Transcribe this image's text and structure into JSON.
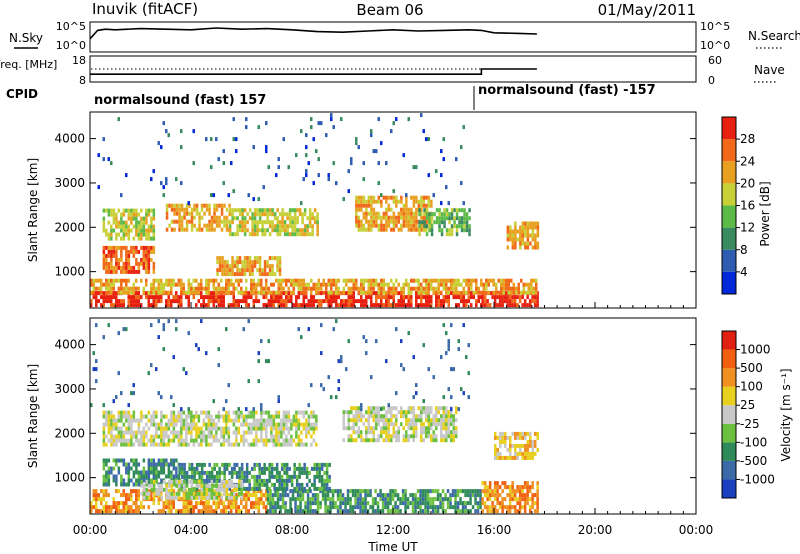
{
  "header": {
    "station": "Inuvik (fitACF)",
    "beam": "Beam 06",
    "date": "01/May/2011"
  },
  "chart_data": [
    {
      "type": "line",
      "panel": "noise",
      "left_label": "N.Sky",
      "right_label": "N.Search",
      "left_ticks": [
        "10^5",
        "10^0"
      ],
      "right_ticks": [
        "10^5",
        "10^0"
      ],
      "x": [
        0,
        0.3,
        0.6,
        1,
        2,
        3,
        4,
        5,
        6,
        7,
        8,
        9,
        10,
        11,
        12,
        13,
        14,
        15,
        15.5,
        16,
        17,
        17.7
      ],
      "series": [
        {
          "values": [
            2.2,
            3.6,
            3.8,
            3.7,
            3.9,
            3.8,
            3.7,
            4.0,
            3.8,
            3.9,
            3.7,
            3.4,
            3.3,
            3.5,
            3.7,
            3.5,
            3.6,
            3.7,
            3.6,
            3.2,
            3.1,
            3.0
          ]
        }
      ]
    },
    {
      "type": "line",
      "panel": "frequency",
      "left_label": "Freq. [MHz]",
      "right_label": "Nave",
      "left_ticks": [
        "18",
        "8"
      ],
      "right_ticks": [
        "60",
        "0"
      ],
      "x": [
        0,
        15.5,
        15.5,
        17.7
      ],
      "series": [
        {
          "values": [
            11,
            11,
            13,
            13
          ]
        }
      ]
    },
    {
      "type": "table",
      "panel": "cpid",
      "label": "CPID",
      "segments": [
        {
          "text": "normalsound (fast) 157",
          "start": 0,
          "end": 15.5
        },
        {
          "text": "normalsound (fast) -157",
          "start": 15.5,
          "end": 24
        }
      ]
    },
    {
      "type": "heatmap",
      "panel": "power",
      "ylabel": "Slant Range [km]",
      "yticks": [
        "1000",
        "2000",
        "3000",
        "4000"
      ],
      "ylim": [
        180,
        4600
      ],
      "xlim": [
        0,
        24
      ],
      "colorbar_label": "Power [dB]",
      "colorbar_ticks": [
        "4",
        "8",
        "12",
        "16",
        "20",
        "24",
        "28"
      ],
      "colorbar_colors": [
        "#0028d8",
        "#2e5cb0",
        "#3a8a60",
        "#5cbb48",
        "#c8d038",
        "#e8a020",
        "#f06818",
        "#e82010"
      ],
      "data_end_hour": 17.7,
      "bands": [
        {
          "t0": 0.0,
          "t1": 15.5,
          "r0": 200,
          "r1": 480,
          "level": 7
        },
        {
          "t0": 15.5,
          "t1": 17.7,
          "r0": 200,
          "r1": 560,
          "level": 7
        },
        {
          "t0": 0.0,
          "t1": 17.7,
          "r0": 480,
          "r1": 800,
          "level": 5
        },
        {
          "t0": 0.5,
          "t1": 2.5,
          "r0": 950,
          "r1": 1500,
          "level": 6
        },
        {
          "t0": 5.0,
          "t1": 7.5,
          "r0": 900,
          "r1": 1350,
          "level": 5
        },
        {
          "t0": 0.5,
          "t1": 2.5,
          "r0": 1700,
          "r1": 2400,
          "level": 4
        },
        {
          "t0": 3.0,
          "t1": 5.5,
          "r0": 1900,
          "r1": 2500,
          "level": 5
        },
        {
          "t0": 5.5,
          "t1": 9.0,
          "r0": 1800,
          "r1": 2400,
          "level": 4
        },
        {
          "t0": 10.5,
          "t1": 13.5,
          "r0": 1900,
          "r1": 2700,
          "level": 5
        },
        {
          "t0": 13.0,
          "t1": 15.0,
          "r0": 1800,
          "r1": 2400,
          "level": 3
        },
        {
          "t0": 16.5,
          "t1": 17.7,
          "r0": 1500,
          "r1": 2100,
          "level": 5
        },
        {
          "t0": 0.0,
          "t1": 15.0,
          "r0": 2500,
          "r1": 4500,
          "level": 1,
          "sparse": true
        }
      ]
    },
    {
      "type": "heatmap",
      "panel": "velocity",
      "ylabel": "Slant Range [km]",
      "yticks": [
        "1000",
        "2000",
        "3000",
        "4000"
      ],
      "ylim": [
        180,
        4600
      ],
      "xlim": [
        0,
        24
      ],
      "colorbar_label": "Velocity [m s⁻¹]",
      "colorbar_ticks": [
        "1000",
        "500",
        "100",
        "25",
        "-25",
        "-100",
        "-500",
        "-1000"
      ],
      "colorbar_colors": [
        "#1a3fbf",
        "#3c6aa8",
        "#2e8a58",
        "#6cc040",
        "#c8c8c8",
        "#e8d020",
        "#f09020",
        "#f06010",
        "#e02010"
      ],
      "xticks": [
        "00:00",
        "04:00",
        "08:00",
        "12:00",
        "16:00",
        "20:00",
        "00:00"
      ],
      "xlabel": "Time UT",
      "data_end_hour": 17.7,
      "bands": [
        {
          "t0": 0.0,
          "t1": 7.0,
          "r0": 200,
          "r1": 700,
          "level": 6
        },
        {
          "t0": 7.0,
          "t1": 15.5,
          "r0": 200,
          "r1": 700,
          "level": 2
        },
        {
          "t0": 15.5,
          "t1": 17.7,
          "r0": 200,
          "r1": 900,
          "level": 6
        },
        {
          "t0": 0.5,
          "t1": 3.5,
          "r0": 800,
          "r1": 1400,
          "level": 2
        },
        {
          "t0": 3.5,
          "t1": 9.5,
          "r0": 700,
          "r1": 1300,
          "level": 2
        },
        {
          "t0": 2.0,
          "t1": 6.0,
          "r0": 500,
          "r1": 900,
          "level": 4
        },
        {
          "t0": 0.5,
          "t1": 9.0,
          "r0": 1700,
          "r1": 2500,
          "level": 4
        },
        {
          "t0": 10.0,
          "t1": 14.5,
          "r0": 1800,
          "r1": 2600,
          "level": 4
        },
        {
          "t0": 16.0,
          "t1": 17.7,
          "r0": 1400,
          "r1": 2000,
          "level": 5
        },
        {
          "t0": 0.0,
          "t1": 15.0,
          "r0": 2500,
          "r1": 4500,
          "level": 1,
          "sparse": true
        }
      ]
    }
  ]
}
